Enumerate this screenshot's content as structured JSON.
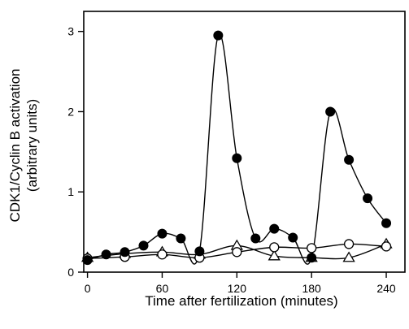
{
  "chart_data": {
    "type": "line",
    "xlabel": "Time after fertilization (minutes)",
    "ylabel_lines": [
      "CDK1/Cyclin B activation",
      "(arbitrary units)"
    ],
    "xlim": [
      -3,
      255
    ],
    "ylim": [
      0,
      3.25
    ],
    "xticks": [
      0,
      60,
      120,
      180,
      240
    ],
    "yticks": [
      0,
      1,
      2,
      3
    ],
    "series": [
      {
        "marker": "filled-circle",
        "color": "#000000",
        "x": [
          0,
          15,
          30,
          45,
          60,
          75,
          90,
          105,
          120,
          135,
          150,
          165,
          180,
          195,
          210,
          225,
          240
        ],
        "y": [
          0.15,
          0.22,
          0.25,
          0.33,
          0.48,
          0.42,
          0.26,
          2.95,
          1.42,
          0.42,
          0.54,
          0.43,
          0.18,
          2.0,
          1.4,
          0.92,
          0.61
        ]
      },
      {
        "marker": "open-circle",
        "color": "#000000",
        "x": [
          0,
          30,
          60,
          90,
          120,
          150,
          180,
          210,
          240
        ],
        "y": [
          0.17,
          0.19,
          0.22,
          0.18,
          0.25,
          0.31,
          0.3,
          0.35,
          0.32
        ]
      },
      {
        "marker": "open-triangle",
        "color": "#000000",
        "x": [
          0,
          30,
          60,
          90,
          120,
          150,
          180,
          210,
          240
        ],
        "y": [
          0.18,
          0.23,
          0.25,
          0.22,
          0.33,
          0.2,
          0.18,
          0.18,
          0.35
        ]
      }
    ]
  }
}
